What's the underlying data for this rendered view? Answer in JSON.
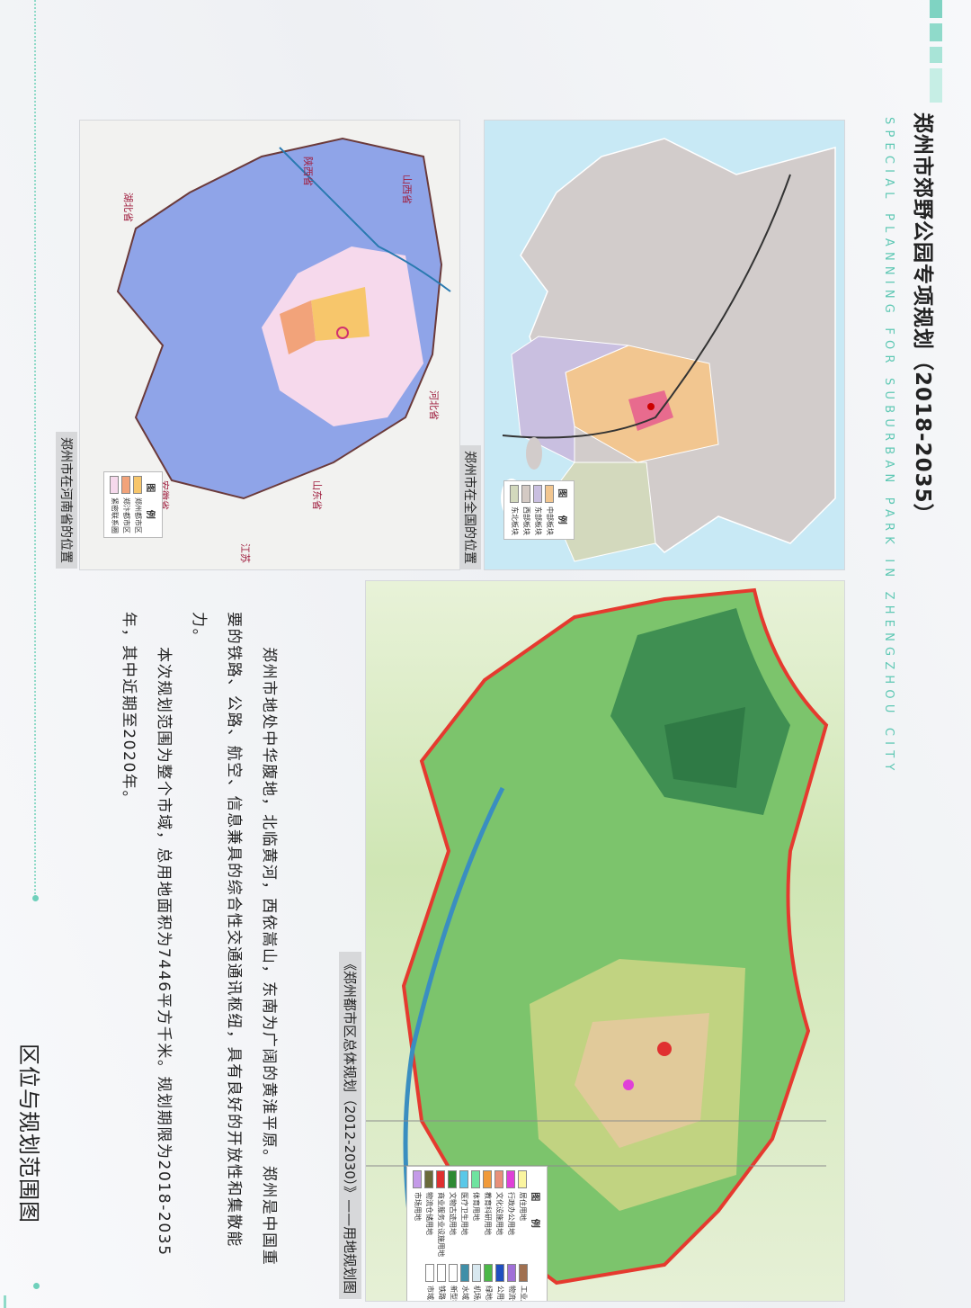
{
  "header": {
    "title": "郑州市郊野公园专项规划（2018-2035）",
    "subtitle": "SPECIAL PLANNING FOR SUBURBAN PARK IN ZHENGZHOU CITY",
    "accent_color": "#6fd0bb"
  },
  "maps": {
    "national": {
      "caption": "郑州市在全国的位置",
      "legend_title": "图 例",
      "legend": [
        {
          "label": "中部板块",
          "color": "#f2c690"
        },
        {
          "label": "东部板块",
          "color": "#c9bfe0"
        },
        {
          "label": "西部板块",
          "color": "#d4cac4"
        },
        {
          "label": "东北板块",
          "color": "#d3d9bd"
        }
      ]
    },
    "provincial": {
      "caption": "郑州市在河南省的位置",
      "legend_title": "图 例",
      "legend": [
        {
          "label": "郑州都市区",
          "color": "#f7c66b"
        },
        {
          "label": "郑汴都市区",
          "color": "#f2a37a"
        },
        {
          "label": "紧密联系圈",
          "color": "#f6d9ec"
        }
      ],
      "labels": [
        "陕西省",
        "湖北省",
        "山西省",
        "河北省",
        "山东省",
        "安徽省",
        "江苏"
      ]
    },
    "landuse": {
      "caption": "《郑州都市区总体规划（2012-2030）》——用地规划图",
      "legend_title": "图 例",
      "legend_left": [
        {
          "label": "居住用地",
          "color": "#fbf5a0"
        },
        {
          "label": "行政办公用地",
          "color": "#e040d8"
        },
        {
          "label": "文化设施用地",
          "color": "#e8907a"
        },
        {
          "label": "教育科研用地",
          "color": "#f09a3a"
        },
        {
          "label": "体育用地",
          "color": "#6fe3a0"
        },
        {
          "label": "医疗卫生用地",
          "color": "#5ac8e8"
        },
        {
          "label": "文物古迹用地",
          "color": "#2f8a34"
        },
        {
          "label": "商业服务业设施用地",
          "color": "#e03030"
        },
        {
          "label": "物流仓储用地",
          "color": "#6a6a3a"
        },
        {
          "label": "市场用地",
          "color": "#c49ae8"
        }
      ],
      "legend_right": [
        {
          "label": "工业用地",
          "color": "#a07050"
        },
        {
          "label": "物流仓储用地",
          "color": "#a070d8"
        },
        {
          "label": "公用设施用地",
          "color": "#1e4fc0"
        },
        {
          "label": "绿地与广场用地",
          "color": "#4cb848"
        },
        {
          "label": "机场用地",
          "color": "#d8e8f0"
        },
        {
          "label": "水域",
          "color": "#3f8fa8"
        },
        {
          "label": "新型农村社区",
          "color": "#ffffff"
        },
        {
          "label": "铁路",
          "color": "#ffffff"
        },
        {
          "label": "市域界",
          "color": "#ffffff"
        }
      ]
    }
  },
  "body": {
    "paragraphs": [
      "郑州市地处中华腹地，北临黄河，西依嵩山，东南为广阔的黄淮平原。郑州是中国重要的铁路、公路、航空、信息兼具的综合性交通通讯枢纽，具有良好的开放性和集散能力。",
      "本次规划范围为整个市域，总用地面积为7446平方千米。规划期限为2018-2035年，其中近期至2020年。"
    ]
  },
  "footer": {
    "page_title": "区位与规划范围图"
  }
}
